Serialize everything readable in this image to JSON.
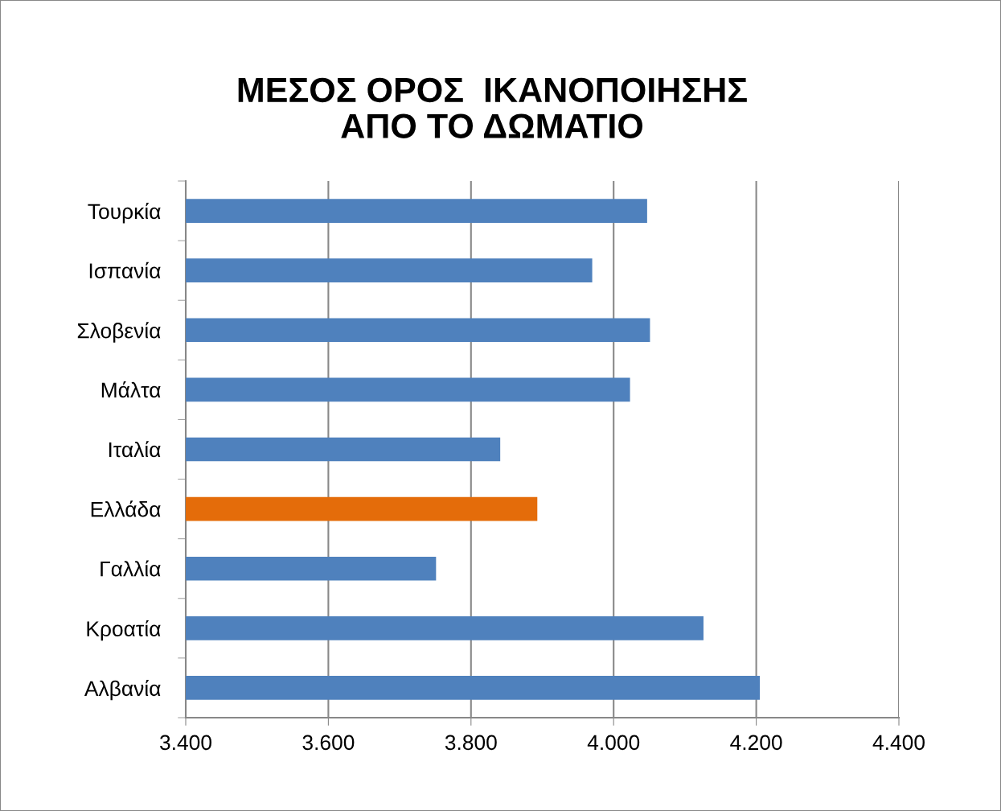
{
  "chart_data": {
    "type": "bar",
    "orientation": "horizontal",
    "title": "ΜΕΣΟΣ ΟΡΟΣ  ΙΚΑΝΟΠΟΙΗΣΗΣ\nΑΠΟ ΤΟ ΔΩΜΑΤΙΟ",
    "categories": [
      "Τουρκία",
      "Ισπανία",
      "Σλοβενία",
      "Μάλτα",
      "Ιταλία",
      "Ελλάδα",
      "Γαλλία",
      "Κροατία",
      "Αλβανία"
    ],
    "values": [
      4.047,
      3.97,
      4.051,
      4.023,
      3.841,
      3.893,
      3.751,
      4.126,
      4.205
    ],
    "colors": [
      "#4f81bd",
      "#4f81bd",
      "#4f81bd",
      "#4f81bd",
      "#4f81bd",
      "#e46c0a",
      "#4f81bd",
      "#4f81bd",
      "#4f81bd"
    ],
    "xlim": [
      3.4,
      4.4
    ],
    "xticks": [
      {
        "value": 3.4,
        "label": "3.400"
      },
      {
        "value": 3.6,
        "label": "3.600"
      },
      {
        "value": 3.8,
        "label": "3.800"
      },
      {
        "value": 4.0,
        "label": "4.000"
      },
      {
        "value": 4.2,
        "label": "4.200"
      },
      {
        "value": 4.4,
        "label": "4.400"
      }
    ],
    "grid": "x"
  }
}
